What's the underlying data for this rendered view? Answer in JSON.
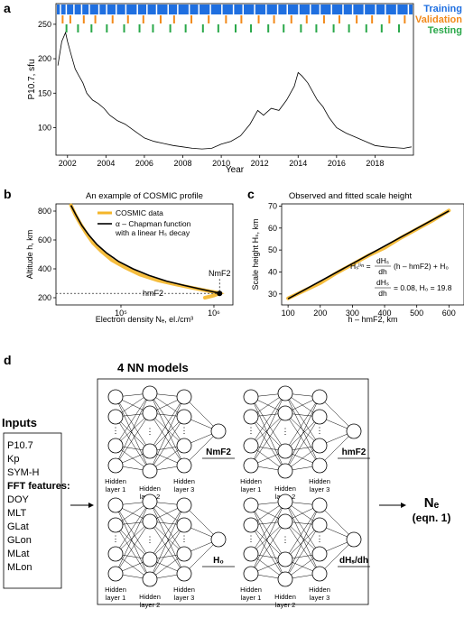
{
  "panel_labels": {
    "a": "a",
    "b": "b",
    "c": "c",
    "d": "d"
  },
  "colors": {
    "training": "#1f6fe0",
    "validation": "#f28a1b",
    "testing": "#2aa84a",
    "cosmic": "#f4b629",
    "fit": "#000000"
  },
  "chart_data": [
    {
      "type": "line",
      "panel": "a",
      "xlabel": "Year",
      "ylabel": "P10.7, sfu",
      "xlim": [
        2001.4,
        2020.0
      ],
      "ylim": [
        60,
        280
      ],
      "x_ticks": [
        "2002",
        "2004",
        "2006",
        "2008",
        "2010",
        "2012",
        "2014",
        "2016",
        "2018"
      ],
      "x_tick_values": [
        2002,
        2004,
        2006,
        2008,
        2010,
        2012,
        2014,
        2016,
        2018
      ],
      "y_ticks": [
        "100",
        "150",
        "200",
        "250"
      ],
      "y_tick_values": [
        100,
        150,
        200,
        250
      ],
      "legend": [
        "Training",
        "Validation",
        "Testing"
      ],
      "series": [
        {
          "name": "P10.7",
          "x": [
            2001.5,
            2001.7,
            2001.9,
            2002.0,
            2002.2,
            2002.4,
            2002.6,
            2002.8,
            2003.0,
            2003.3,
            2003.6,
            2003.9,
            2004.2,
            2004.6,
            2005.0,
            2005.5,
            2006.0,
            2006.5,
            2007.0,
            2007.5,
            2008.0,
            2008.5,
            2009.0,
            2009.5,
            2010.0,
            2010.5,
            2011.0,
            2011.5,
            2011.9,
            2012.2,
            2012.6,
            2013.0,
            2013.4,
            2013.8,
            2014.0,
            2014.2,
            2014.5,
            2014.8,
            2015.0,
            2015.3,
            2015.6,
            2016.0,
            2016.5,
            2017.0,
            2017.5,
            2018.0,
            2018.5,
            2019.0,
            2019.5,
            2019.9
          ],
          "y": [
            190,
            225,
            238,
            225,
            205,
            185,
            175,
            165,
            150,
            140,
            135,
            128,
            118,
            110,
            105,
            95,
            85,
            80,
            77,
            74,
            72,
            70,
            69,
            70,
            76,
            80,
            88,
            105,
            125,
            118,
            128,
            125,
            140,
            160,
            180,
            175,
            165,
            150,
            140,
            130,
            115,
            100,
            92,
            86,
            80,
            74,
            72,
            71,
            70,
            72
          ]
        },
        {
          "name": "Training",
          "x": [
            2001.6,
            2001.9,
            2002.3,
            2002.7,
            2003.1,
            2003.6,
            2004.0,
            2004.5,
            2005.0,
            2005.6,
            2006.1,
            2006.6,
            2007.2,
            2007.7,
            2008.3,
            2008.8,
            2009.4,
            2010.0,
            2010.6,
            2011.1,
            2011.7,
            2012.3,
            2012.9,
            2013.4,
            2014.0,
            2014.6,
            2015.1,
            2015.7,
            2016.3,
            2016.8,
            2017.4,
            2018.0,
            2018.5,
            2019.1,
            2019.7
          ]
        },
        {
          "name": "Validation",
          "x": [
            2001.7,
            2002.1,
            2002.8,
            2003.4,
            2004.3,
            2005.1,
            2005.9,
            2006.8,
            2007.5,
            2008.4,
            2009.3,
            2010.2,
            2011.0,
            2011.9,
            2012.7,
            2013.6,
            2014.4,
            2015.3,
            2016.1,
            2017.0,
            2017.8,
            2018.7,
            2019.5
          ]
        },
        {
          "name": "Testing",
          "x": [
            2001.9,
            2002.5,
            2003.2,
            2004.0,
            2004.9,
            2005.7,
            2006.4,
            2007.3,
            2008.1,
            2009.0,
            2009.8,
            2010.7,
            2011.5,
            2012.4,
            2013.2,
            2014.1,
            2014.9,
            2015.8,
            2016.6,
            2017.5,
            2018.3,
            2019.2
          ]
        }
      ]
    },
    {
      "type": "line",
      "panel": "b",
      "title": "An example of COSMIC profile",
      "xlabel": "Electron density Nₑ, el./cm³",
      "ylabel": "Altitude h, km",
      "xscale": "log",
      "xlim": [
        20000,
        1600000
      ],
      "ylim": [
        150,
        850
      ],
      "x_ticks": [
        "10⁵",
        "10⁶"
      ],
      "x_tick_values": [
        100000,
        1000000
      ],
      "y_ticks": [
        "200",
        "400",
        "600",
        "800"
      ],
      "y_tick_values": [
        200,
        400,
        600,
        800
      ],
      "legend": [
        "COSMIC data",
        "α – Chapman function",
        "with a linear Hₛ decay"
      ],
      "annotations": {
        "peak": "NmF2",
        "height": "hmF2"
      },
      "peak": {
        "x": 1150000,
        "y": 230
      },
      "series": [
        {
          "name": "COSMIC data",
          "x": [
            29000,
            32000,
            36000,
            42000,
            50000,
            62000,
            80000,
            110000,
            160000,
            250000,
            400000,
            620000,
            900000,
            1100000,
            1150000,
            1000000,
            800000
          ],
          "y": [
            840,
            780,
            720,
            650,
            580,
            520,
            460,
            410,
            360,
            320,
            290,
            265,
            245,
            235,
            230,
            215,
            200
          ]
        },
        {
          "name": "α – Chapman function with a linear Hₛ decay",
          "x": [
            29000,
            33000,
            38000,
            45000,
            55000,
            70000,
            95000,
            135000,
            200000,
            310000,
            480000,
            700000,
            950000,
            1120000,
            1150000
          ],
          "y": [
            840,
            770,
            700,
            635,
            570,
            510,
            450,
            400,
            355,
            315,
            285,
            262,
            243,
            233,
            230
          ]
        }
      ]
    },
    {
      "type": "line",
      "panel": "c",
      "title": "Observed and fitted scale height",
      "xlabel": "h – hmF2, km",
      "ylabel": "Scale height Hₛ, km",
      "xlim": [
        80,
        630
      ],
      "ylim": [
        25,
        71
      ],
      "x_ticks": [
        "100",
        "200",
        "300",
        "400",
        "500",
        "600"
      ],
      "x_tick_values": [
        100,
        200,
        300,
        400,
        500,
        600
      ],
      "y_ticks": [
        "30",
        "40",
        "50",
        "60",
        "70"
      ],
      "y_tick_values": [
        30,
        40,
        50,
        60,
        70
      ],
      "equation": {
        "lhs": "Hₛˡⁱⁿ = ",
        "frac_num": "dHₛ",
        "frac_den": "dh",
        "rhs": "(h – hmF2) + H₀",
        "values": "= 0.08, H₀ = 19.8"
      },
      "series": [
        {
          "name": "Observed",
          "x": [
            100,
            150,
            200,
            250,
            300,
            350,
            400,
            450,
            500,
            550,
            600
          ],
          "y": [
            28,
            31.5,
            35,
            39.5,
            43.5,
            47.5,
            51,
            55.5,
            59.5,
            63.5,
            68
          ]
        },
        {
          "name": "Fitted",
          "x": [
            100,
            600
          ],
          "y": [
            27.8,
            67.8
          ]
        }
      ]
    }
  ],
  "panel_d": {
    "inputs_title": "Inputs",
    "inputs": [
      "P10.7",
      "Kp",
      "SYM-H"
    ],
    "fft_title": "FFT features:",
    "fft": [
      "DOY",
      "MLT",
      "GLat",
      "GLon",
      "MLat",
      "MLon"
    ],
    "models_title": "4 NN models",
    "layer1": "Hidden layer 1",
    "layer2": "Hidden layer 2",
    "layer3": "Hidden layer 3",
    "outputs": [
      "NmF2",
      "hmF2",
      "H₀",
      "dHₛ/dh"
    ],
    "result": "Nₑ",
    "result_sub": "(eqn. 1)"
  }
}
